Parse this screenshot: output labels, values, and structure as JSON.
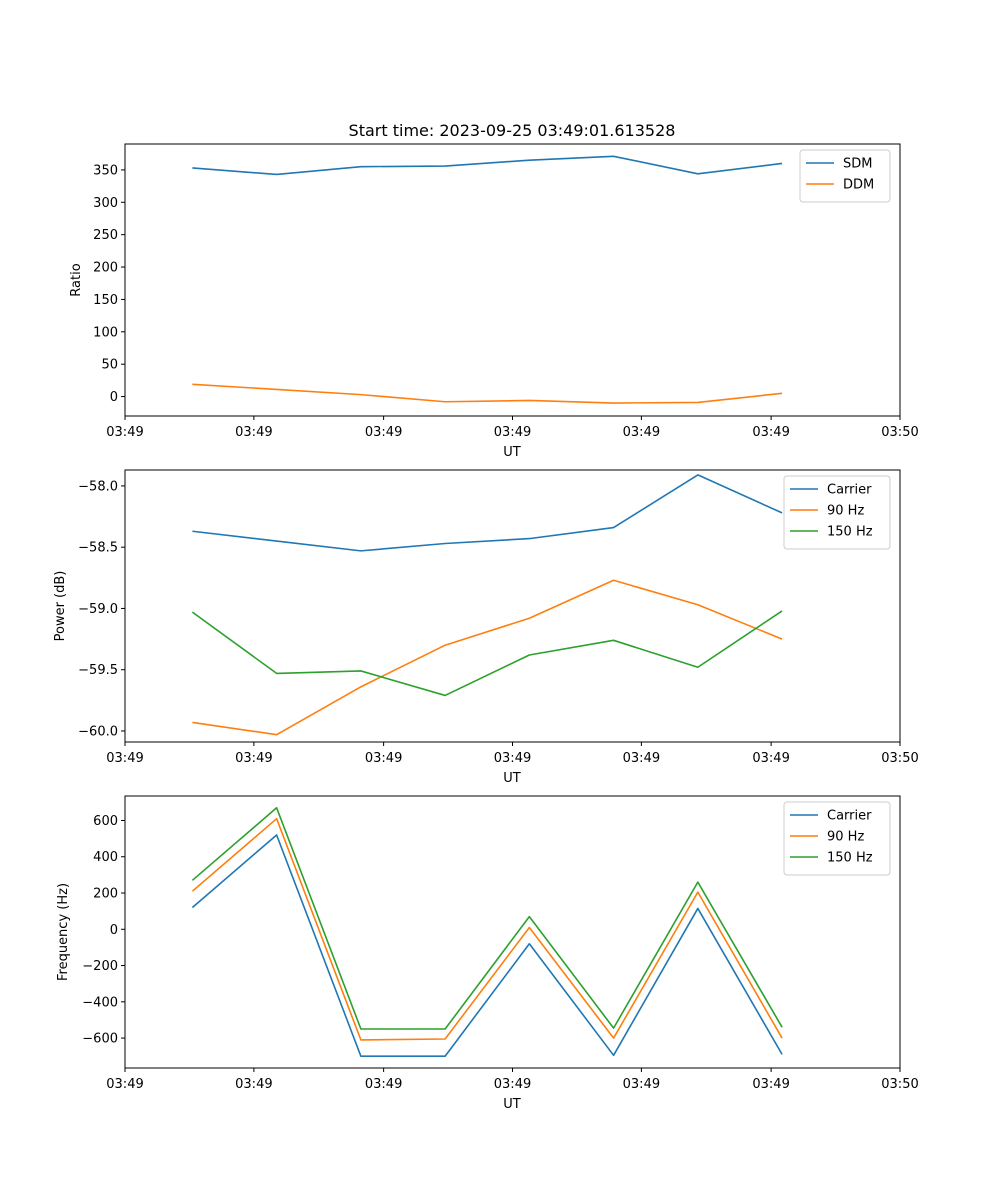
{
  "chart_data": [
    {
      "type": "line",
      "title": "Start time: 2023-09-25 03:49:01.613528",
      "xlabel": "UT",
      "ylabel": "Ratio",
      "x_tick_labels": [
        "03:49",
        "03:49",
        "03:49",
        "03:49",
        "03:49",
        "03:49",
        "03:50"
      ],
      "ylim": [
        -30,
        390
      ],
      "y_ticks": [
        0,
        50,
        100,
        150,
        200,
        250,
        300,
        350
      ],
      "legend_position": "top-right",
      "x_index": [
        1,
        2,
        3,
        4,
        5,
        6,
        7,
        8
      ],
      "series": [
        {
          "name": "SDM",
          "color": "#1f77b4",
          "values": [
            353,
            343,
            355,
            356,
            365,
            371,
            344,
            360
          ]
        },
        {
          "name": "DDM",
          "color": "#ff7f0e",
          "values": [
            19,
            11,
            3,
            -8,
            -6,
            -10,
            -9,
            5
          ]
        }
      ]
    },
    {
      "type": "line",
      "title": "",
      "xlabel": "UT",
      "ylabel": "Power (dB)",
      "x_tick_labels": [
        "03:49",
        "03:49",
        "03:49",
        "03:49",
        "03:49",
        "03:49",
        "03:50"
      ],
      "ylim": [
        -60.09,
        -57.87
      ],
      "y_ticks": [
        -58.0,
        -58.5,
        -59.0,
        -59.5,
        -60.0
      ],
      "y_tick_labels": [
        "−58.0",
        "−58.5",
        "−59.0",
        "−59.5",
        "−60.0"
      ],
      "legend_position": "top-right",
      "x_index": [
        1,
        2,
        3,
        4,
        5,
        6,
        7,
        8
      ],
      "series": [
        {
          "name": "Carrier",
          "color": "#1f77b4",
          "values": [
            -58.37,
            -58.45,
            -58.53,
            -58.47,
            -58.43,
            -58.34,
            -57.91,
            -58.22
          ]
        },
        {
          "name": "90 Hz",
          "color": "#ff7f0e",
          "values": [
            -59.93,
            -60.03,
            -59.64,
            -59.3,
            -59.08,
            -58.77,
            -58.97,
            -59.25
          ]
        },
        {
          "name": "150 Hz",
          "color": "#2ca02c",
          "values": [
            -59.03,
            -59.53,
            -59.51,
            -59.71,
            -59.38,
            -59.26,
            -59.48,
            -59.02
          ]
        }
      ]
    },
    {
      "type": "line",
      "title": "",
      "xlabel": "UT",
      "ylabel": "Frequency (Hz)",
      "x_tick_labels": [
        "03:49",
        "03:49",
        "03:49",
        "03:49",
        "03:49",
        "03:49",
        "03:50"
      ],
      "ylim": [
        -765,
        735
      ],
      "y_ticks": [
        600,
        400,
        200,
        0,
        -200,
        -400,
        -600
      ],
      "y_tick_labels": [
        "600",
        "400",
        "200",
        "0",
        "−200",
        "−400",
        "−600"
      ],
      "legend_position": "top-right",
      "x_index": [
        1,
        2,
        3,
        4,
        5,
        6,
        7,
        8
      ],
      "series": [
        {
          "name": "Carrier",
          "color": "#1f77b4",
          "values": [
            120,
            520,
            -700,
            -700,
            -80,
            -695,
            115,
            -690
          ]
        },
        {
          "name": "90 Hz",
          "color": "#ff7f0e",
          "values": [
            210,
            610,
            -610,
            -605,
            10,
            -600,
            205,
            -600
          ]
        },
        {
          "name": "150 Hz",
          "color": "#2ca02c",
          "values": [
            270,
            670,
            -550,
            -550,
            70,
            -545,
            260,
            -540
          ]
        }
      ]
    }
  ],
  "x_axis": {
    "min": 0.2,
    "max": 9.4,
    "tick_positions": [
      0.2,
      1.73,
      3.27,
      4.8,
      6.33,
      7.87,
      9.4
    ]
  }
}
